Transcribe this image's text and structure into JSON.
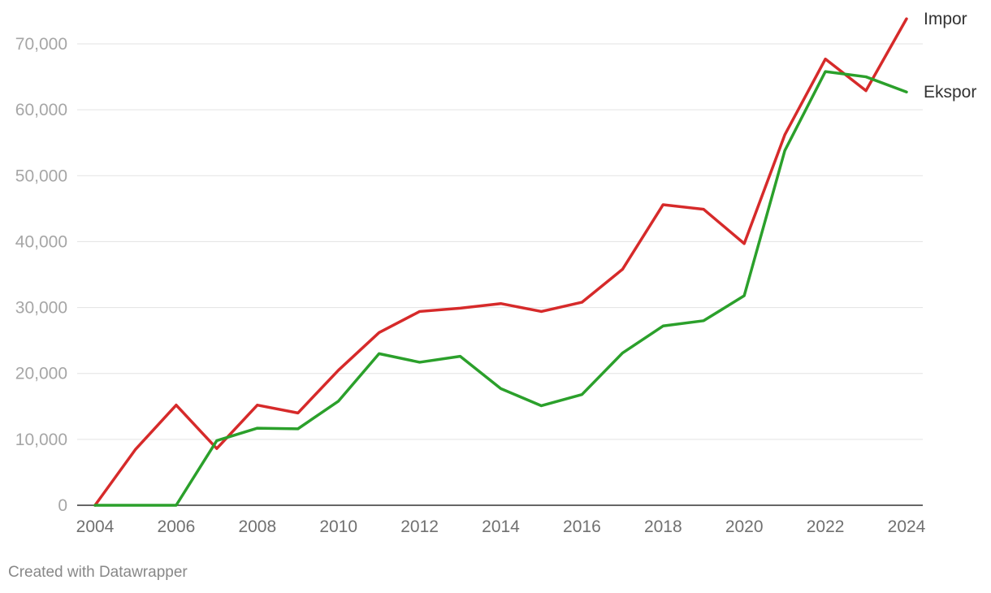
{
  "chart_data": {
    "type": "line",
    "x": [
      2004,
      2005,
      2006,
      2007,
      2008,
      2009,
      2010,
      2011,
      2012,
      2013,
      2014,
      2015,
      2016,
      2017,
      2018,
      2019,
      2020,
      2021,
      2022,
      2023,
      2024
    ],
    "x_ticks": [
      "2004",
      "2006",
      "2008",
      "2010",
      "2012",
      "2014",
      "2016",
      "2018",
      "2020",
      "2022",
      "2024"
    ],
    "y_ticks": [
      "0",
      "10,000",
      "20,000",
      "30,000",
      "40,000",
      "50,000",
      "60,000",
      "70,000"
    ],
    "ylim": [
      0,
      70000
    ],
    "xlim": [
      2004,
      2024
    ],
    "grid": true,
    "series": [
      {
        "name": "Impor",
        "color": "#d62a2a",
        "values": [
          0,
          8500,
          15200,
          8600,
          15200,
          14000,
          20500,
          26200,
          29400,
          29900,
          30600,
          29400,
          30800,
          35800,
          45600,
          44900,
          39700,
          56200,
          67700,
          62900,
          73800
        ]
      },
      {
        "name": "Ekspor",
        "color": "#2ba02b",
        "values": [
          0,
          0,
          0,
          9800,
          11700,
          11600,
          15800,
          23000,
          21700,
          22600,
          17700,
          15100,
          16800,
          23100,
          27200,
          28000,
          31800,
          53800,
          65800,
          65000,
          62700
        ]
      }
    ]
  },
  "footer": {
    "credit": "Created with Datawrapper"
  }
}
